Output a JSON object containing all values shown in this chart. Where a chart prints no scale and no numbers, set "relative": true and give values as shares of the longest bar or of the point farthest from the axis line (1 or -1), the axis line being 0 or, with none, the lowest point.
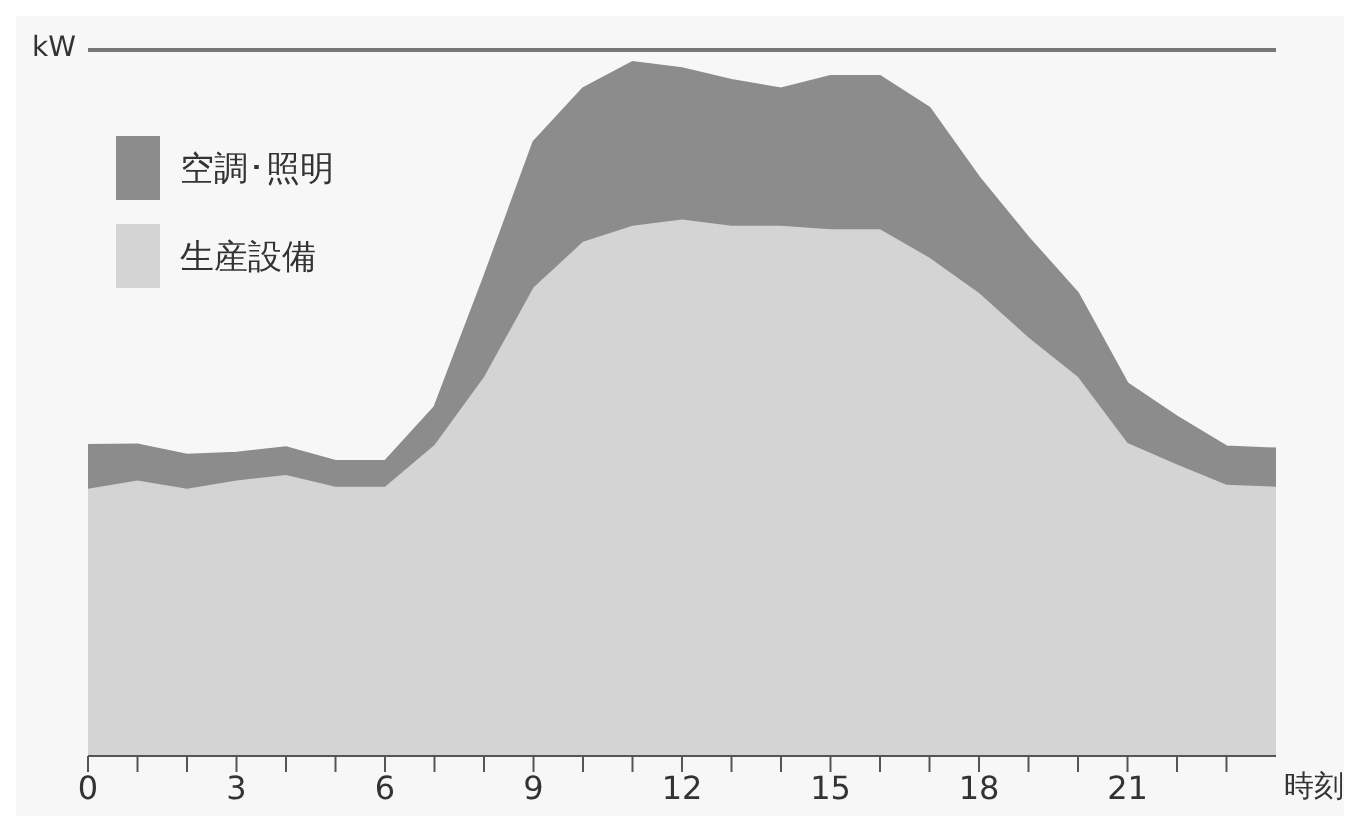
{
  "chart_data": {
    "type": "area",
    "stacked": true,
    "relative": true,
    "ylabel": "kW",
    "xlabel": "時刻",
    "x": [
      0,
      1,
      2,
      3,
      4,
      5,
      6,
      7,
      8,
      9,
      10,
      11,
      12,
      13,
      14,
      15,
      16,
      17,
      18,
      19,
      20,
      21,
      22,
      23,
      24
    ],
    "xlim": [
      0,
      24
    ],
    "xticks": [
      0,
      {
        "value": 1,
        "label": null
      },
      {
        "value": 2,
        "label": null
      },
      3,
      {
        "value": 4,
        "label": null
      },
      {
        "value": 5,
        "label": null
      },
      6,
      {
        "value": 7,
        "label": null
      },
      {
        "value": 8,
        "label": null
      },
      9,
      {
        "value": 10,
        "label": null
      },
      {
        "value": 11,
        "label": null
      },
      12,
      {
        "value": 13,
        "label": null
      },
      {
        "value": 14,
        "label": null
      },
      15,
      {
        "value": 16,
        "label": null
      },
      {
        "value": 17,
        "label": null
      },
      18,
      {
        "value": 19,
        "label": null
      },
      {
        "value": 20,
        "label": null
      },
      21,
      {
        "value": 22,
        "label": null
      },
      {
        "value": 23,
        "label": null
      }
    ],
    "legend": "top left",
    "grid": false,
    "tick_labels": "x",
    "series": [
      {
        "name": "生産設備",
        "color": "#d4d4d4",
        "values": [
          0.385,
          0.397,
          0.385,
          0.397,
          0.405,
          0.388,
          0.388,
          0.448,
          0.546,
          0.675,
          0.741,
          0.764,
          0.773,
          0.764,
          0.764,
          0.759,
          0.759,
          0.718,
          0.667,
          0.603,
          0.546,
          0.451,
          0.42,
          0.391,
          0.388
        ]
      },
      {
        "name": "空調･照明",
        "color": "#8c8c8c",
        "values": [
          0.063,
          0.052,
          0.049,
          0.04,
          0.04,
          0.037,
          0.037,
          0.055,
          0.144,
          0.21,
          0.221,
          0.236,
          0.218,
          0.21,
          0.198,
          0.221,
          0.221,
          0.216,
          0.167,
          0.144,
          0.121,
          0.086,
          0.069,
          0.055,
          0.055
        ]
      }
    ]
  }
}
